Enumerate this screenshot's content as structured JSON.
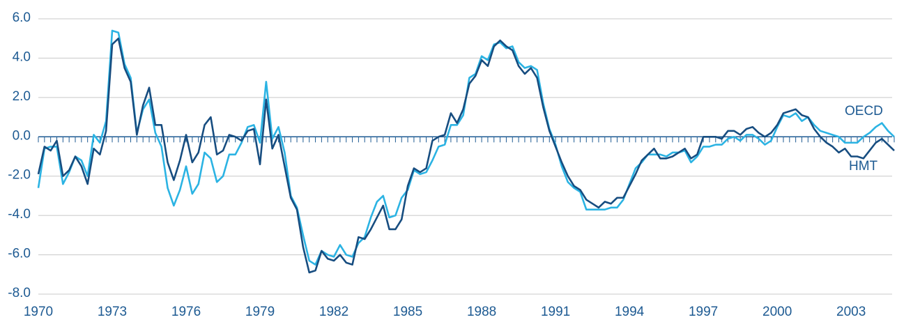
{
  "chart_data": {
    "type": "line",
    "x": [
      1970,
      1970.25,
      1970.5,
      1970.75,
      1971,
      1971.25,
      1971.5,
      1971.75,
      1972,
      1972.25,
      1972.5,
      1972.75,
      1973,
      1973.25,
      1973.5,
      1973.75,
      1974,
      1974.25,
      1974.5,
      1974.75,
      1975,
      1975.25,
      1975.5,
      1975.75,
      1976,
      1976.25,
      1976.5,
      1976.75,
      1977,
      1977.25,
      1977.5,
      1977.75,
      1978,
      1978.25,
      1978.5,
      1978.75,
      1979,
      1979.25,
      1979.5,
      1979.75,
      1980,
      1980.25,
      1980.5,
      1980.75,
      1981,
      1981.25,
      1981.5,
      1981.75,
      1982,
      1982.25,
      1982.5,
      1982.75,
      1983,
      1983.25,
      1983.5,
      1983.75,
      1984,
      1984.25,
      1984.5,
      1984.75,
      1985,
      1985.25,
      1985.5,
      1985.75,
      1986,
      1986.25,
      1986.5,
      1986.75,
      1987,
      1987.25,
      1987.5,
      1987.75,
      1988,
      1988.25,
      1988.5,
      1988.75,
      1989,
      1989.25,
      1989.5,
      1989.75,
      1990,
      1990.25,
      1990.5,
      1990.75,
      1991,
      1991.25,
      1991.5,
      1991.75,
      1992,
      1992.25,
      1992.5,
      1992.75,
      1993,
      1993.25,
      1993.5,
      1993.75,
      1994,
      1994.25,
      1994.5,
      1994.75,
      1995,
      1995.25,
      1995.5,
      1995.75,
      1996,
      1996.25,
      1996.5,
      1996.75,
      1997,
      1997.25,
      1997.5,
      1997.75,
      1998,
      1998.25,
      1998.5,
      1998.75,
      1999,
      1999.25,
      1999.5,
      1999.75,
      2000,
      2000.25,
      2000.5,
      2000.75,
      2001,
      2001.25,
      2001.5,
      2001.75,
      2002,
      2002.25,
      2002.5,
      2002.75,
      2003,
      2003.25,
      2003.5,
      2003.75,
      2004,
      2004.25,
      2004.5,
      2004.75
    ],
    "series": [
      {
        "name": "HMT",
        "color": "#174d80",
        "values": [
          -1.9,
          -0.5,
          -0.7,
          -0.2,
          -2.0,
          -1.7,
          -1.0,
          -1.5,
          -2.4,
          -0.6,
          -0.9,
          0.3,
          4.7,
          5.0,
          3.5,
          2.8,
          0.1,
          1.6,
          2.5,
          0.6,
          0.6,
          -1.3,
          -2.2,
          -1.2,
          0.1,
          -1.3,
          -0.8,
          0.6,
          1.0,
          -0.9,
          -0.7,
          0.1,
          0.0,
          -0.2,
          0.3,
          0.4,
          -1.4,
          1.9,
          -0.6,
          0.1,
          -1.5,
          -3.1,
          -3.7,
          -5.6,
          -6.9,
          -6.8,
          -5.8,
          -6.2,
          -6.3,
          -6.0,
          -6.4,
          -6.5,
          -5.1,
          -5.2,
          -4.7,
          -4.1,
          -3.5,
          -4.7,
          -4.7,
          -4.2,
          -2.5,
          -1.6,
          -1.8,
          -1.6,
          -0.2,
          0.0,
          0.1,
          1.2,
          0.7,
          1.4,
          2.7,
          3.1,
          3.9,
          3.6,
          4.6,
          4.9,
          4.6,
          4.4,
          3.6,
          3.2,
          3.5,
          3.0,
          1.5,
          0.3,
          -0.5,
          -1.3,
          -2.0,
          -2.5,
          -2.7,
          -3.2,
          -3.4,
          -3.6,
          -3.3,
          -3.4,
          -3.1,
          -3.1,
          -2.5,
          -1.9,
          -1.2,
          -0.9,
          -0.6,
          -1.1,
          -1.1,
          -1.0,
          -0.8,
          -0.6,
          -1.1,
          -0.9,
          0.0,
          0.0,
          0.0,
          -0.1,
          0.3,
          0.3,
          0.1,
          0.4,
          0.5,
          0.2,
          0.0,
          0.2,
          0.6,
          1.2,
          1.3,
          1.4,
          1.1,
          1.0,
          0.4,
          0.0,
          -0.3,
          -0.5,
          -0.8,
          -0.6,
          -1.0,
          -1.0,
          -1.1,
          -0.7,
          -0.3,
          -0.1,
          -0.4,
          -0.7
        ]
      },
      {
        "name": "OECD",
        "color": "#2bb3e3",
        "values": [
          -2.6,
          -0.6,
          -0.5,
          -0.5,
          -2.4,
          -1.8,
          -1.0,
          -1.2,
          -2.0,
          0.1,
          -0.3,
          0.8,
          5.4,
          5.3,
          3.7,
          3.0,
          0.2,
          1.4,
          1.9,
          0.2,
          -0.5,
          -2.6,
          -3.5,
          -2.7,
          -1.5,
          -2.9,
          -2.4,
          -0.8,
          -1.1,
          -2.3,
          -2.0,
          -0.9,
          -0.9,
          -0.3,
          0.5,
          0.6,
          -0.3,
          2.8,
          -0.1,
          0.5,
          -0.8,
          -3.0,
          -3.6,
          -5.0,
          -6.3,
          -6.5,
          -5.8,
          -6.0,
          -6.1,
          -5.5,
          -6.0,
          -6.1,
          -5.4,
          -5.1,
          -4.1,
          -3.3,
          -3.0,
          -4.1,
          -4.0,
          -3.1,
          -2.7,
          -1.7,
          -1.9,
          -1.8,
          -1.2,
          -0.5,
          -0.4,
          0.6,
          0.6,
          1.1,
          3.0,
          3.2,
          4.1,
          3.9,
          4.7,
          4.8,
          4.5,
          4.6,
          3.8,
          3.5,
          3.6,
          3.4,
          1.7,
          0.4,
          -0.4,
          -1.5,
          -2.3,
          -2.6,
          -2.8,
          -3.7,
          -3.7,
          -3.7,
          -3.7,
          -3.6,
          -3.6,
          -3.2,
          -2.4,
          -1.6,
          -1.3,
          -0.9,
          -0.9,
          -0.9,
          -1.0,
          -0.8,
          -0.8,
          -0.7,
          -1.3,
          -1.0,
          -0.5,
          -0.5,
          -0.4,
          -0.4,
          -0.1,
          0.0,
          -0.2,
          0.1,
          0.1,
          -0.1,
          -0.4,
          -0.2,
          0.5,
          1.1,
          1.0,
          1.2,
          0.8,
          1.0,
          0.6,
          0.3,
          0.2,
          0.1,
          0.0,
          -0.3,
          -0.3,
          -0.3,
          0.0,
          0.2,
          0.5,
          0.7,
          0.3,
          0.0
        ]
      }
    ],
    "xlim": [
      1970,
      2004.75
    ],
    "xticks": [
      1970,
      1973,
      1976,
      1979,
      1982,
      1985,
      1988,
      1991,
      1994,
      1997,
      2000,
      2003
    ],
    "ylim": [
      -8,
      6
    ],
    "yticks": [
      {
        "value": -8,
        "label": "-8.0"
      },
      {
        "value": -6,
        "label": "-6.0"
      },
      {
        "value": -4,
        "label": "-4.0"
      },
      {
        "value": -2,
        "label": "-2.0"
      },
      {
        "value": 0,
        "label": "0.0"
      },
      {
        "value": 2,
        "label": "2.0"
      },
      {
        "value": 4,
        "label": "4.0"
      },
      {
        "value": 6,
        "label": "6.0"
      }
    ],
    "grid": true
  }
}
